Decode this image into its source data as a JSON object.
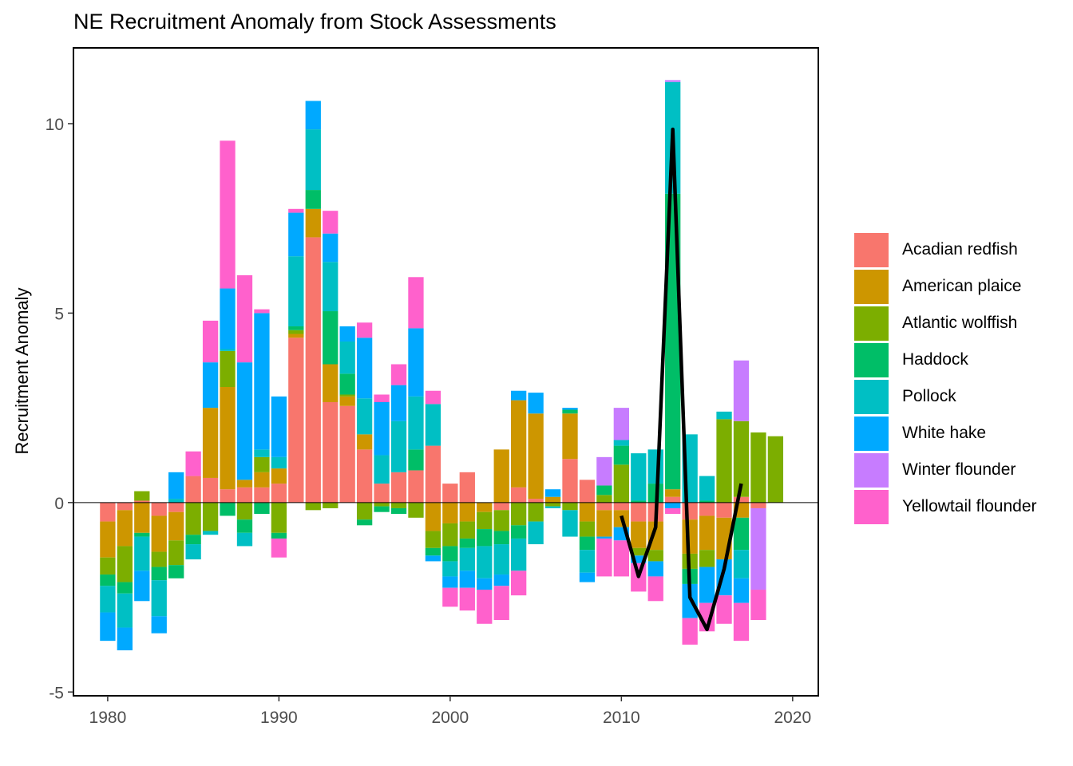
{
  "chart_data": {
    "type": "bar",
    "stacked": true,
    "title": "NE Recruitment Anomaly from Stock Assessments",
    "xlabel": "",
    "ylabel": "Recruitment Anomaly",
    "xlim": [
      1978,
      2021.5
    ],
    "ylim": [
      -5.1,
      12.0
    ],
    "x_ticks": [
      1980,
      1990,
      2000,
      2010,
      2020
    ],
    "y_ticks": [
      -5,
      0,
      5,
      10
    ],
    "x_tick_labels": [
      "1980",
      "1990",
      "2000",
      "2010",
      "2020"
    ],
    "y_tick_labels": [
      "-5",
      "0",
      "5",
      "10"
    ],
    "grid": false,
    "legend_position": "right",
    "zero_line": true,
    "years": [
      1980,
      1981,
      1982,
      1983,
      1984,
      1985,
      1986,
      1987,
      1988,
      1989,
      1990,
      1991,
      1992,
      1993,
      1994,
      1995,
      1996,
      1997,
      1998,
      1999,
      2000,
      2001,
      2002,
      2003,
      2004,
      2005,
      2006,
      2007,
      2008,
      2009,
      2010,
      2011,
      2012,
      2013,
      2014,
      2015,
      2016,
      2017,
      2018,
      2019
    ],
    "series": [
      {
        "name": "Acadian redfish",
        "color": "#F8766D",
        "values": [
          -0.5,
          -0.2,
          0.05,
          -0.35,
          -0.25,
          0.7,
          0.65,
          0.35,
          0.4,
          0.4,
          0.5,
          4.35,
          7.0,
          2.65,
          2.55,
          1.4,
          0.5,
          0.8,
          0.85,
          1.5,
          0.5,
          0.8,
          0,
          -0.2,
          0.4,
          0.1,
          0,
          1.15,
          0.6,
          -0.2,
          -0.2,
          -0.5,
          -0.5,
          0.15,
          -0.45,
          -0.35,
          -0.4,
          0.15,
          -0.15,
          0
        ]
      },
      {
        "name": "American plaice",
        "color": "#CD9600",
        "values": [
          -0.95,
          -0.95,
          -0.8,
          -0.95,
          -0.75,
          0,
          1.85,
          2.7,
          0.2,
          0.4,
          0.4,
          0.1,
          0.75,
          1.0,
          0.25,
          0.4,
          0,
          0,
          0,
          -0.75,
          -0.55,
          -0.5,
          -0.25,
          1.4,
          2.3,
          2.25,
          0.15,
          1.2,
          -0.5,
          -0.7,
          -0.45,
          -0.7,
          -0.75,
          0.2,
          -0.9,
          -0.9,
          -1.1,
          -0.4,
          0,
          0
        ]
      },
      {
        "name": "Atlantic wolffish",
        "color": "#7CAE00",
        "values": [
          -0.45,
          -0.95,
          0.25,
          -0.4,
          -0.65,
          -0.85,
          -0.75,
          0.95,
          -0.45,
          0.4,
          -0.8,
          0.1,
          -0.2,
          -0.15,
          0.05,
          -0.45,
          -0.1,
          -0.15,
          -0.4,
          -0.45,
          -0.6,
          -0.45,
          -0.45,
          -0.55,
          -0.6,
          -0.5,
          -0.1,
          -0.2,
          -0.4,
          0.2,
          1.0,
          -0.2,
          -0.3,
          0,
          -0.4,
          -0.45,
          2.2,
          2.0,
          1.85,
          1.75
        ]
      },
      {
        "name": "Haddock",
        "color": "#00BE67",
        "values": [
          -0.3,
          -0.3,
          -0.1,
          -0.35,
          -0.35,
          -0.25,
          0,
          -0.35,
          -0.35,
          -0.3,
          -0.15,
          0.1,
          0.5,
          1.4,
          0.55,
          -0.15,
          -0.15,
          -0.15,
          0.55,
          -0.2,
          -0.4,
          -0.25,
          -0.45,
          -0.35,
          -0.35,
          0,
          0,
          0.1,
          -0.35,
          0.25,
          0.5,
          0.05,
          0.5,
          7.8,
          -0.4,
          0.05,
          0,
          -0.85,
          0,
          0
        ]
      },
      {
        "name": "Pollock",
        "color": "#00BFC4",
        "values": [
          -0.7,
          -0.9,
          -0.9,
          -0.95,
          0.1,
          -0.4,
          -0.1,
          0.05,
          -0.35,
          0.2,
          0.3,
          1.85,
          1.6,
          1.3,
          0.85,
          0.95,
          0.75,
          1.35,
          1.4,
          1.1,
          -0.4,
          -0.6,
          -0.85,
          -0.8,
          -0.85,
          -0.6,
          -0.05,
          -0.7,
          -0.6,
          0,
          0.15,
          1.25,
          0.9,
          2.95,
          1.8,
          0.65,
          0.2,
          -0.75,
          0,
          0
        ]
      },
      {
        "name": "White hake",
        "color": "#00A9FF",
        "values": [
          -0.75,
          -0.6,
          -0.8,
          -0.45,
          0.7,
          0,
          1.2,
          1.6,
          3.1,
          3.6,
          1.6,
          1.15,
          0.75,
          0.75,
          0.4,
          1.6,
          1.4,
          0.95,
          1.8,
          -0.15,
          -0.3,
          -0.45,
          -0.3,
          -0.3,
          0.25,
          0.55,
          0.2,
          0.05,
          -0.25,
          -0.05,
          -0.35,
          -0.2,
          -0.4,
          -0.15,
          -0.9,
          -0.95,
          -0.95,
          -0.65,
          0,
          0
        ]
      },
      {
        "name": "Winter flounder",
        "color": "#C77CFF",
        "values": [
          0,
          0,
          0,
          0,
          0,
          0,
          0,
          0,
          0,
          0,
          0,
          0,
          0,
          0,
          0,
          0,
          0,
          0,
          0,
          0,
          0,
          0,
          0,
          0,
          0,
          0,
          0,
          0,
          0,
          0.75,
          0.85,
          0,
          0,
          0.05,
          0,
          0,
          0,
          1.6,
          -2.15,
          0
        ]
      },
      {
        "name": "Yellowtail flounder",
        "color": "#FF61CC",
        "values": [
          0,
          0,
          0,
          0,
          0,
          0.65,
          1.1,
          3.9,
          2.3,
          0.1,
          -0.5,
          0.1,
          0,
          0.6,
          0,
          0.4,
          0.2,
          0.55,
          1.35,
          0.35,
          -0.5,
          -0.6,
          -0.9,
          -0.9,
          -0.65,
          0,
          0,
          0,
          0,
          -1.0,
          -0.95,
          -0.75,
          -0.65,
          -0.15,
          -0.7,
          -0.75,
          -0.75,
          -1.0,
          -0.8,
          0
        ]
      }
    ],
    "line": {
      "name": "",
      "color": "#000000",
      "x": [
        2010,
        2011,
        2012,
        2013,
        2014,
        2015,
        2016,
        2017
      ],
      "y": [
        -0.35,
        -1.95,
        -0.65,
        9.85,
        -2.5,
        -3.35,
        -1.75,
        0.5
      ]
    }
  }
}
